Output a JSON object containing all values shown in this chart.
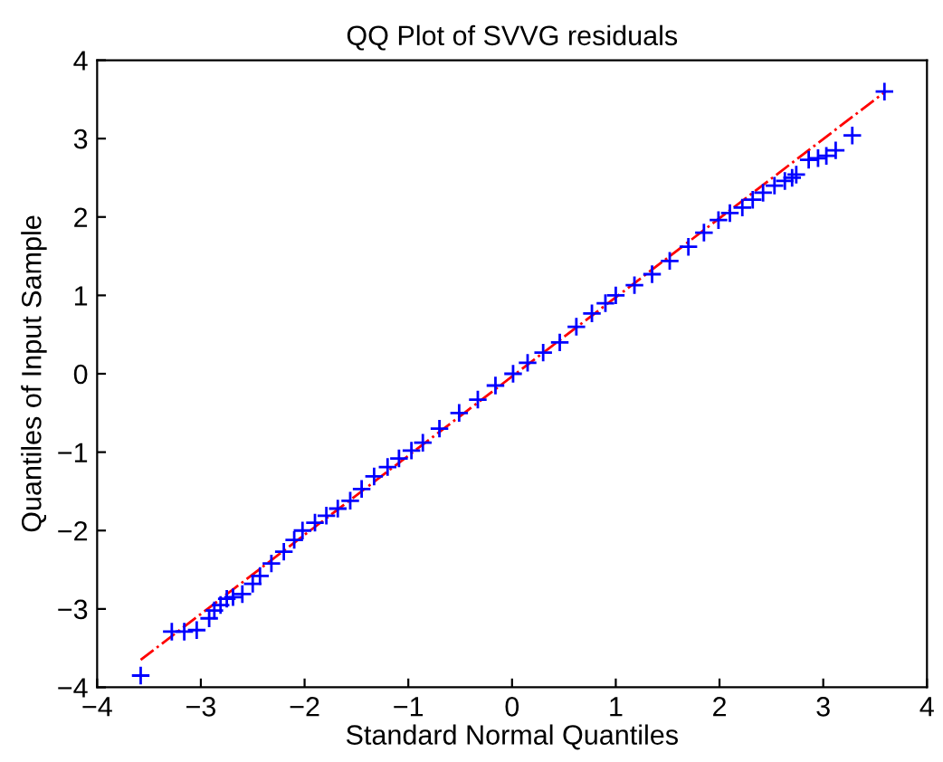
{
  "chart_data": {
    "type": "scatter",
    "title": "QQ Plot of SVVG residuals",
    "xlabel": "Standard Normal Quantiles",
    "ylabel": "Quantiles of Input Sample",
    "xlim": [
      -4,
      4
    ],
    "xticks": [
      -4,
      -3,
      -2,
      -1,
      0,
      1,
      2,
      3,
      4
    ],
    "ylim": [
      -4,
      4
    ],
    "yticks": [
      -4,
      -3,
      -2,
      -1,
      0,
      1,
      2,
      3,
      4
    ],
    "grid": false,
    "legend": false,
    "series": [
      {
        "type": "line",
        "color": "#ff0000",
        "line_style": "dashed",
        "marker": "none",
        "x": [
          -3.58,
          3.6
        ],
        "values": [
          -3.65,
          3.6
        ]
      },
      {
        "color": "#0000ff",
        "marker": "cross",
        "x": [
          -3.58,
          -3.28,
          -3.16,
          -3.04,
          -2.92,
          -2.87,
          -2.81,
          -2.75,
          -2.69,
          -2.6,
          -2.5,
          -2.43,
          -2.32,
          -2.2,
          -2.1,
          -2.02,
          -1.9,
          -1.79,
          -1.68,
          -1.56,
          -1.45,
          -1.33,
          -1.2,
          -1.09,
          -0.97,
          -0.86,
          -0.7,
          -0.51,
          -0.33,
          -0.16,
          0.01,
          0.15,
          0.3,
          0.46,
          0.62,
          0.77,
          0.9,
          1.0,
          1.18,
          1.35,
          1.52,
          1.7,
          1.85,
          1.99,
          2.1,
          2.22,
          2.32,
          2.42,
          2.53,
          2.63,
          2.7,
          2.74,
          2.86,
          2.95,
          3.03,
          3.12,
          3.28,
          3.59
        ],
        "values": [
          -3.85,
          -3.29,
          -3.29,
          -3.27,
          -3.12,
          -3.02,
          -2.95,
          -2.87,
          -2.85,
          -2.81,
          -2.68,
          -2.58,
          -2.42,
          -2.27,
          -2.12,
          -2.0,
          -1.9,
          -1.81,
          -1.72,
          -1.62,
          -1.47,
          -1.31,
          -1.19,
          -1.08,
          -0.98,
          -0.88,
          -0.7,
          -0.5,
          -0.33,
          -0.15,
          0.0,
          0.14,
          0.27,
          0.4,
          0.6,
          0.77,
          0.9,
          1.0,
          1.13,
          1.27,
          1.44,
          1.62,
          1.8,
          1.96,
          2.05,
          2.12,
          2.22,
          2.31,
          2.4,
          2.46,
          2.5,
          2.54,
          2.73,
          2.75,
          2.78,
          2.85,
          3.04,
          3.6
        ]
      }
    ]
  }
}
